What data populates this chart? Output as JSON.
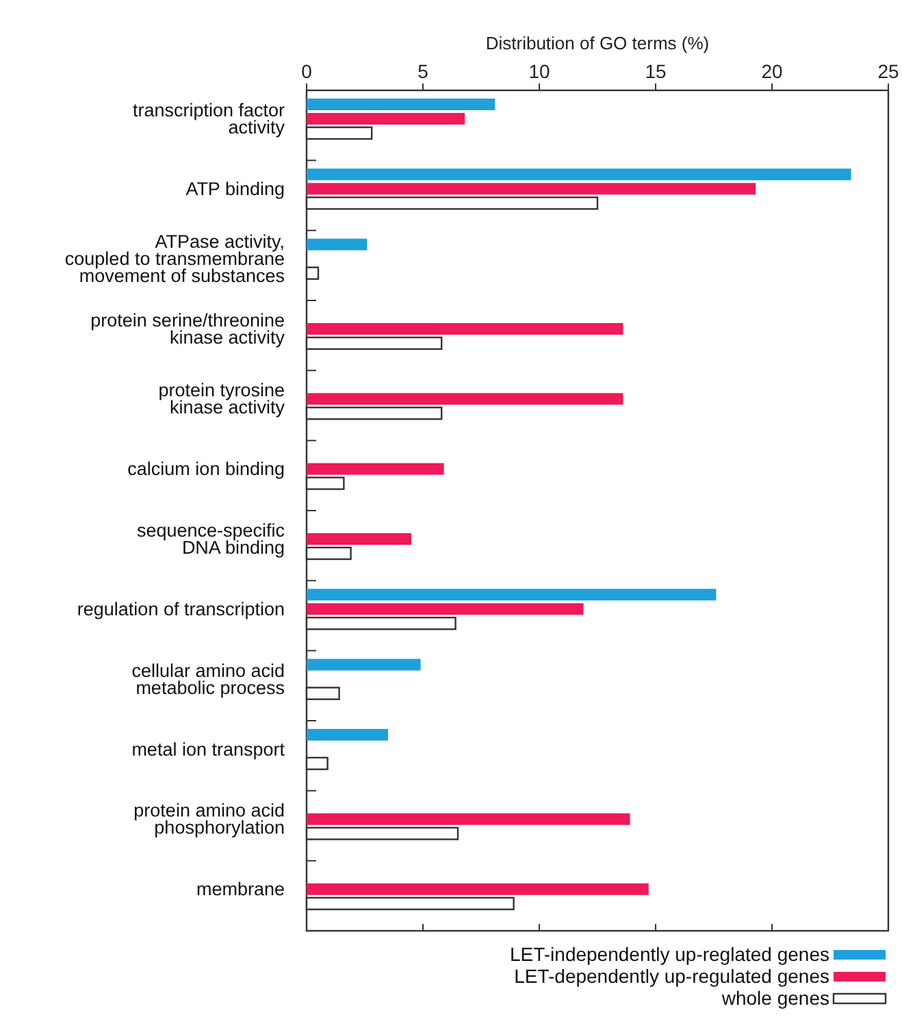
{
  "chart_data": {
    "type": "bar",
    "orientation": "horizontal",
    "xlabel": "Distribution of GO terms (%)",
    "categories": [
      "transcription factor\nactivity",
      "ATP binding",
      "ATPase activity,\ncoupled to transmembrane\nmovement of substances",
      "protein serine/threonine\nkinase activity",
      "protein tyrosine\nkinase activity",
      "calcium ion binding",
      "sequence-specific\nDNA binding",
      "regulation of transcription",
      "cellular amino acid\nmetabolic process",
      "metal ion transport",
      "protein amino acid\nphosphorylation",
      "membrane"
    ],
    "series": [
      {
        "name": "LET-independently up-reglated genes",
        "color": "#1fa0db",
        "values": [
          8.1,
          23.4,
          2.6,
          null,
          null,
          null,
          null,
          17.6,
          4.9,
          3.5,
          null,
          null
        ]
      },
      {
        "name": "LET-dependently up-regulated genes",
        "color": "#ee1a5a",
        "values": [
          6.8,
          19.3,
          null,
          13.6,
          13.6,
          5.9,
          4.5,
          11.9,
          null,
          null,
          13.9,
          14.7
        ]
      },
      {
        "name": "whole genes",
        "color": "#ffffff",
        "values": [
          2.8,
          12.5,
          0.5,
          5.8,
          5.8,
          1.6,
          1.9,
          6.4,
          1.4,
          0.9,
          6.5,
          8.9
        ]
      }
    ],
    "xlim": [
      0,
      25
    ],
    "xticks": [
      0,
      5,
      10,
      15,
      20,
      25
    ],
    "legend": "bottom right",
    "grid": false
  }
}
